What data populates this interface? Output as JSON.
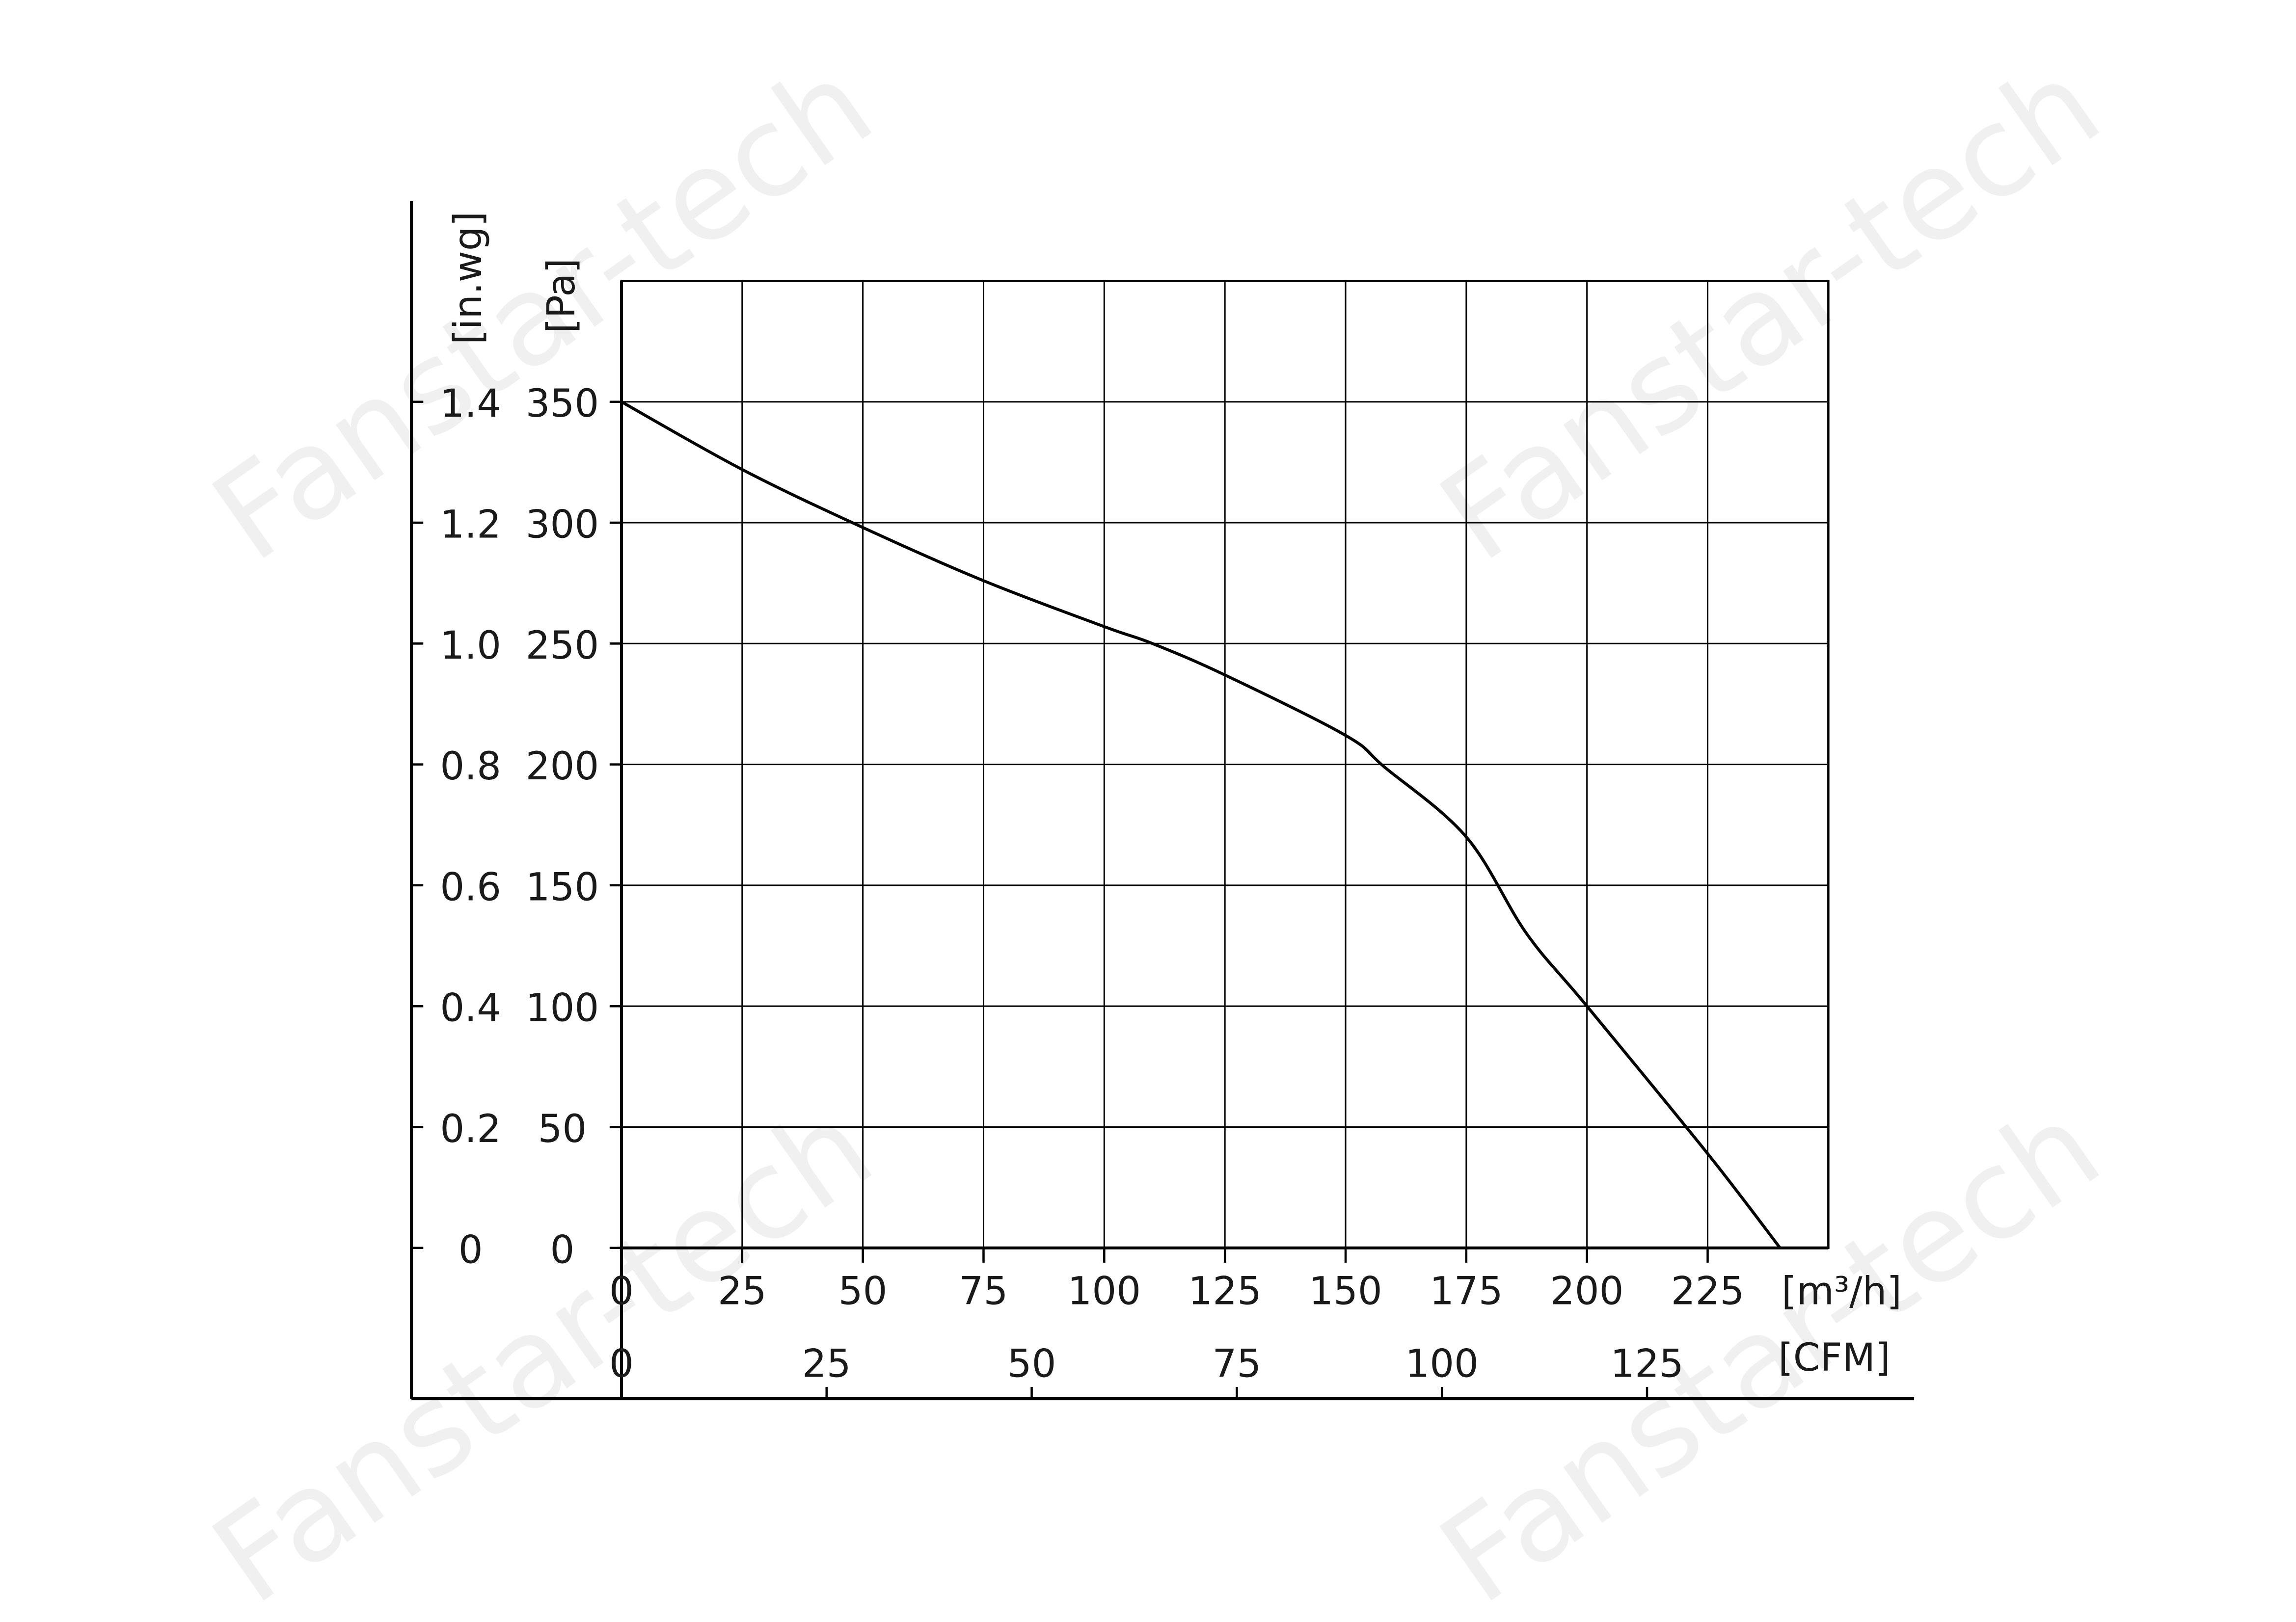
{
  "chart_data": {
    "type": "line",
    "watermark": "Fanstar-tech",
    "x_label": "[m³/h]",
    "x2_label": "[CFM]",
    "y_label": "[Pa]",
    "y2_label": "[in.wg]",
    "x": [
      0,
      25,
      50,
      75,
      100,
      110,
      125,
      150,
      158,
      175,
      187.5,
      200,
      225,
      240
    ],
    "series": [
      {
        "color": "#000000",
        "values": [
          350,
          322,
          298,
          276,
          257,
          250,
          237,
          212,
          199,
          170,
          130,
          100,
          39,
          0
        ]
      }
    ],
    "xlim": [
      0,
      250
    ],
    "xticks": [
      0,
      25,
      50,
      75,
      100,
      125,
      150,
      175,
      200,
      225
    ],
    "x2lim": [
      0,
      147.1
    ],
    "x2ticks": [
      0,
      25,
      50,
      75,
      100,
      125
    ],
    "ylim": [
      0,
      400
    ],
    "yticks": [
      0,
      50,
      100,
      150,
      200,
      250,
      300,
      350
    ],
    "y2lim": [
      0,
      1.6
    ],
    "y2ticks": [
      0,
      0.2,
      0.4,
      0.6,
      0.8,
      {
        "value": 1,
        "label": "1.0"
      },
      1.2,
      1.4
    ],
    "grid": true
  }
}
